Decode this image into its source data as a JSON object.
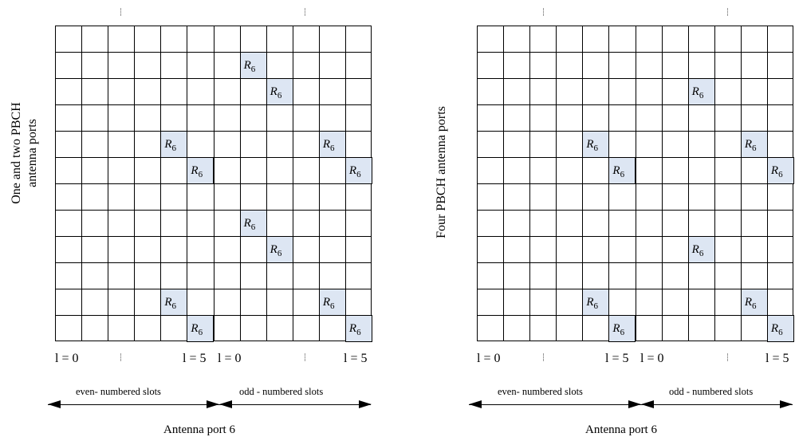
{
  "left_panel": {
    "y_title": "One and two PBCH antenna ports",
    "highlights": [
      [
        1,
        7
      ],
      [
        2,
        8
      ],
      [
        4,
        4
      ],
      [
        4,
        10
      ],
      [
        5,
        5
      ],
      [
        5,
        11
      ],
      [
        7,
        7
      ],
      [
        8,
        8
      ],
      [
        10,
        4
      ],
      [
        10,
        10
      ],
      [
        11,
        5
      ],
      [
        11,
        11
      ]
    ]
  },
  "right_panel": {
    "y_title": "Four PBCH antenna ports",
    "highlights": [
      [
        2,
        8
      ],
      [
        4,
        4
      ],
      [
        4,
        10
      ],
      [
        5,
        5
      ],
      [
        5,
        11
      ],
      [
        8,
        8
      ],
      [
        10,
        4
      ],
      [
        10,
        10
      ],
      [
        11,
        5
      ],
      [
        11,
        11
      ]
    ]
  },
  "grid": {
    "rows": 12,
    "cols": 12
  },
  "cell_label": {
    "base": "R",
    "sub": "6"
  },
  "l_labels": {
    "even_start": "l = 0",
    "even_end": "l = 5",
    "odd_start": "l = 0",
    "odd_end": "l = 5"
  },
  "slots": {
    "even": "even- numbered slots",
    "odd": "odd - numbered slots"
  },
  "caption": "Antenna port 6",
  "colors": {
    "highlight": "#dde6f3",
    "line": "#000000"
  }
}
